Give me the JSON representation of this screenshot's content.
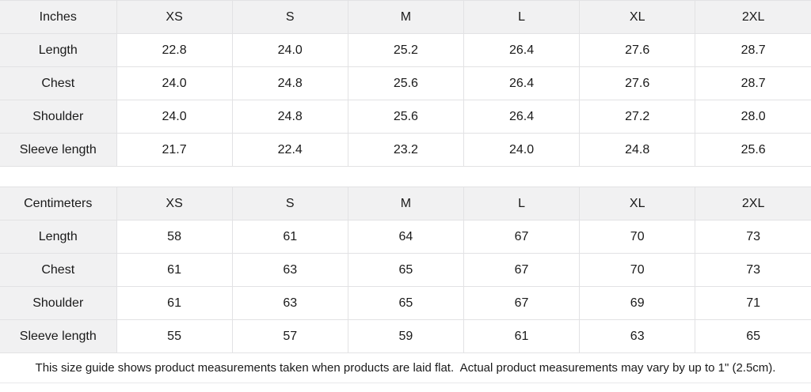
{
  "colors": {
    "header_bg": "#f1f1f2",
    "border": "#e2e2e4",
    "text": "#1a1a1a",
    "page_bg": "#ffffff"
  },
  "tables": [
    {
      "id": "inches",
      "unit_label": "Inches",
      "sizes": [
        "XS",
        "S",
        "M",
        "L",
        "XL",
        "2XL"
      ],
      "rows": [
        {
          "label": "Length",
          "values": [
            "22.8",
            "24.0",
            "25.2",
            "26.4",
            "27.6",
            "28.7"
          ]
        },
        {
          "label": "Chest",
          "values": [
            "24.0",
            "24.8",
            "25.6",
            "26.4",
            "27.6",
            "28.7"
          ]
        },
        {
          "label": "Shoulder",
          "values": [
            "24.0",
            "24.8",
            "25.6",
            "26.4",
            "27.2",
            "28.0"
          ]
        },
        {
          "label": "Sleeve length",
          "values": [
            "21.7",
            "22.4",
            "23.2",
            "24.0",
            "24.8",
            "25.6"
          ]
        }
      ]
    },
    {
      "id": "centimeters",
      "unit_label": "Centimeters",
      "sizes": [
        "XS",
        "S",
        "M",
        "L",
        "XL",
        "2XL"
      ],
      "rows": [
        {
          "label": "Length",
          "values": [
            "58",
            "61",
            "64",
            "67",
            "70",
            "73"
          ]
        },
        {
          "label": "Chest",
          "values": [
            "61",
            "63",
            "65",
            "67",
            "70",
            "73"
          ]
        },
        {
          "label": "Shoulder",
          "values": [
            "61",
            "63",
            "65",
            "67",
            "69",
            "71"
          ]
        },
        {
          "label": "Sleeve length",
          "values": [
            "55",
            "57",
            "59",
            "61",
            "63",
            "65"
          ]
        }
      ]
    }
  ],
  "footer": {
    "note": "This size guide shows product measurements taken when products are laid flat.  Actual product measurements may vary by up to 1\" (2.5cm)."
  }
}
